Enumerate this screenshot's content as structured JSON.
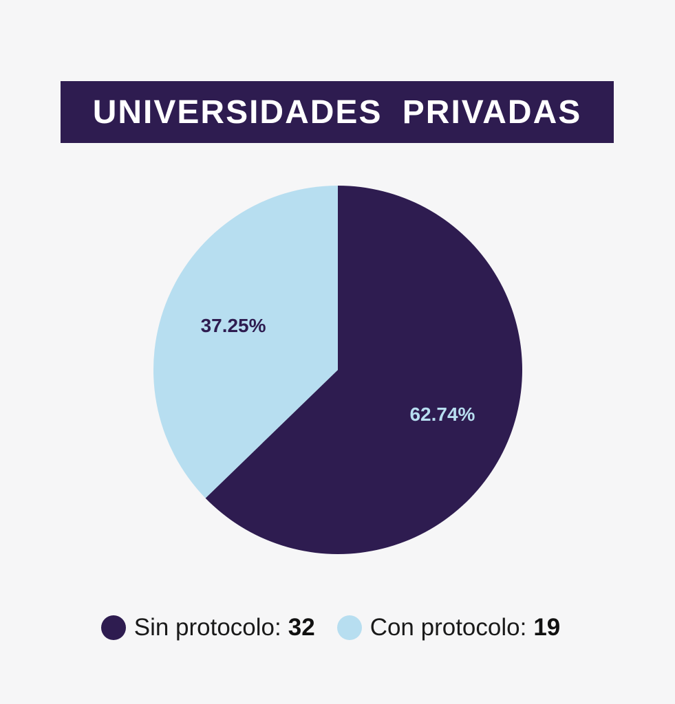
{
  "chart_data": {
    "type": "pie",
    "title": "UNIVERSIDADES  PRIVADAS",
    "slices": [
      {
        "label": "Sin protocolo:",
        "value": 32,
        "percent_label": "62.74%",
        "color": "#2e1c50",
        "label_color": "#b7def0"
      },
      {
        "label": "Con protocolo:",
        "value": 19,
        "percent_label": "37.25%",
        "color": "#b7def0",
        "label_color": "#2e1c50"
      }
    ],
    "legend_position": "bottom",
    "start_angle": "12 o'clock",
    "direction": "clockwise"
  }
}
